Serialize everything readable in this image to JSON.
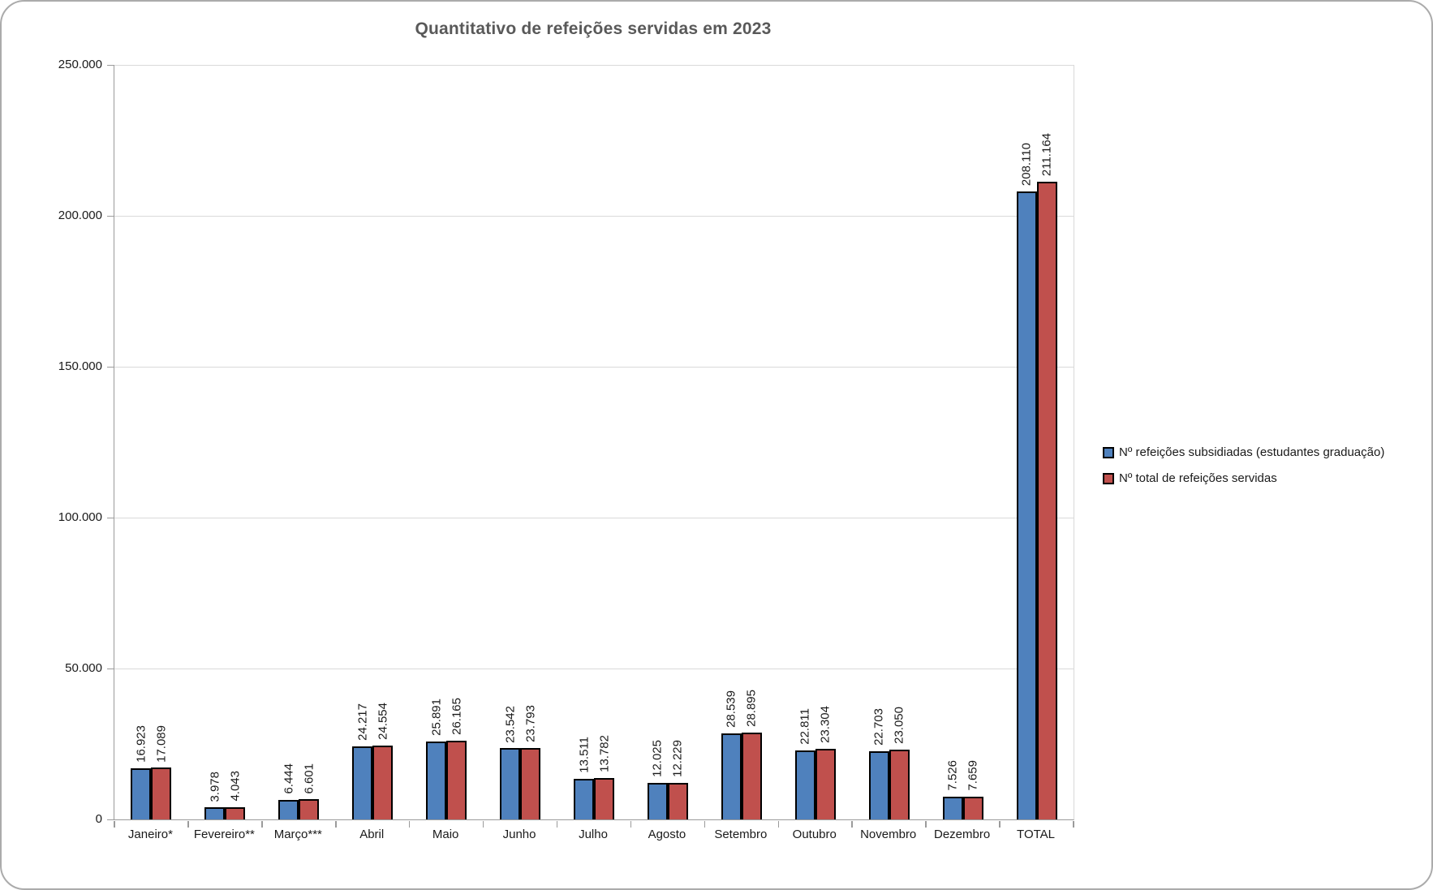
{
  "frame": {
    "background": "#ffffff",
    "border_color": "#ababab"
  },
  "chart_data": {
    "type": "bar",
    "title": "Quantitativo de refeições servidas em 2023",
    "categories": [
      "Janeiro*",
      "Fevereiro**",
      "Março***",
      "Abril",
      "Maio",
      "Junho",
      "Julho",
      "Agosto",
      "Setembro",
      "Outubro",
      "Novembro",
      "Dezembro",
      "TOTAL"
    ],
    "series": [
      {
        "name": "Nº refeições subsidiadas (estudantes graduação)",
        "color": "#4f81bd",
        "values": [
          16923,
          3978,
          6444,
          24217,
          25891,
          23542,
          13511,
          12025,
          28539,
          22811,
          22703,
          7526,
          208110
        ],
        "labels": [
          "16.923",
          "3.978",
          "6.444",
          "24.217",
          "25.891",
          "23.542",
          "13.511",
          "12.025",
          "28.539",
          "22.811",
          "22.703",
          "7.526",
          "208.110"
        ]
      },
      {
        "name": "Nº total de refeições servidas",
        "color": "#c0504d",
        "values": [
          17089,
          4043,
          6601,
          24554,
          26165,
          23793,
          13782,
          12229,
          28895,
          23304,
          23050,
          7659,
          211164
        ],
        "labels": [
          "17.089",
          "4.043",
          "6.601",
          "24.554",
          "26.165",
          "23.793",
          "13.782",
          "12.229",
          "28.895",
          "23.304",
          "23.050",
          "7.659",
          "211.164"
        ]
      }
    ],
    "y_axis": {
      "min": 0,
      "max": 250000,
      "step": 50000,
      "tick_labels": [
        "0",
        "50.000",
        "100.000",
        "150.000",
        "200.000",
        "250.000"
      ]
    },
    "xlabel": "",
    "ylabel": "",
    "grid": true,
    "legend_position": "right",
    "bar_border_color": "#000000",
    "data_label_rotation": 90
  }
}
